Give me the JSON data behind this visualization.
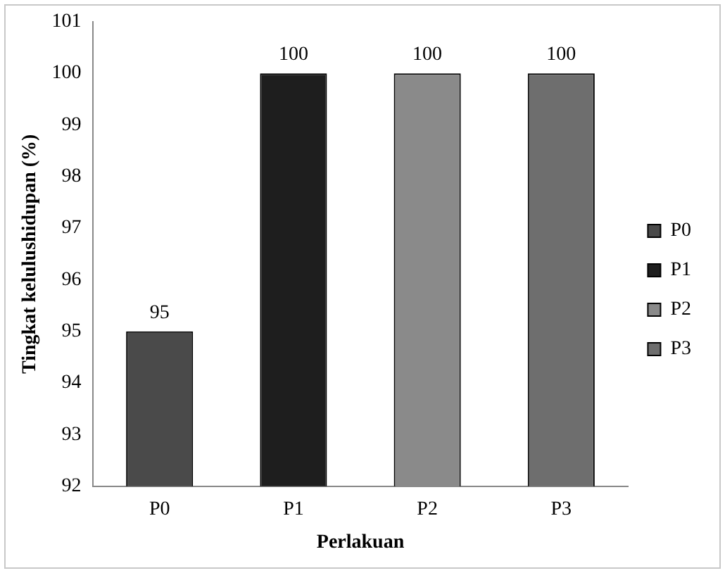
{
  "chart_data": {
    "type": "bar",
    "xlabel": "Perlakuan",
    "ylabel": "Tingkat kelulushidupan (%)",
    "categories": [
      "P0",
      "P1",
      "P2",
      "P3"
    ],
    "series": [
      {
        "name": "P0",
        "color": "#4a4a4a",
        "values": [
          95,
          null,
          null,
          null
        ]
      },
      {
        "name": "P1",
        "color": "#1e1e1e",
        "values": [
          null,
          100,
          null,
          null
        ]
      },
      {
        "name": "P2",
        "color": "#8a8a8a",
        "values": [
          null,
          null,
          100,
          null
        ]
      },
      {
        "name": "P3",
        "color": "#6e6e6e",
        "values": [
          null,
          null,
          null,
          100
        ]
      }
    ],
    "ylim": [
      92,
      101
    ],
    "yticks": [
      92,
      93,
      94,
      95,
      96,
      97,
      98,
      99,
      100,
      101
    ],
    "grid": false,
    "legend": "right",
    "data_labels": true
  }
}
